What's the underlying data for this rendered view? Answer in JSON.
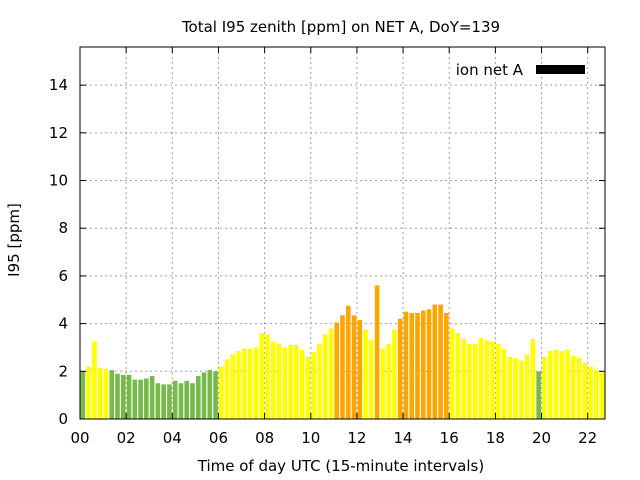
{
  "chart_data": {
    "type": "bar",
    "title": "Total I95 zenith [ppm] on NET A, DoY=139",
    "xlabel": "Time of day UTC (15-minute intervals)",
    "ylabel": "I95 [ppm]",
    "xlim": [
      0,
      22.75
    ],
    "ylim": [
      0,
      15.6
    ],
    "grid": true,
    "legend_position": "top-right",
    "legend": [
      {
        "name": "ion net A",
        "color": "#000000"
      }
    ],
    "x_ticks": [
      "00",
      "02",
      "04",
      "06",
      "08",
      "10",
      "12",
      "14",
      "16",
      "18",
      "20",
      "22"
    ],
    "y_ticks": [
      "0",
      "2",
      "4",
      "6",
      "8",
      "10",
      "12",
      "14"
    ],
    "interval_hours": 0.25,
    "colors": {
      "green": "#77b94b",
      "yellow": "#ffff00",
      "orange": "#ffa500"
    },
    "values": [
      2.0,
      2.2,
      3.25,
      2.15,
      2.1,
      2.05,
      1.9,
      1.85,
      1.85,
      1.65,
      1.65,
      1.7,
      1.8,
      1.5,
      1.45,
      1.45,
      1.6,
      1.5,
      1.6,
      1.5,
      1.8,
      1.95,
      2.05,
      2.0,
      2.2,
      2.5,
      2.7,
      2.85,
      2.95,
      2.95,
      3.0,
      3.6,
      3.55,
      3.25,
      3.15,
      3.0,
      3.1,
      3.1,
      2.9,
      2.6,
      2.8,
      3.15,
      3.55,
      3.8,
      4.05,
      4.35,
      4.75,
      4.35,
      4.15,
      3.75,
      3.3,
      5.6,
      2.95,
      3.15,
      3.75,
      4.2,
      4.5,
      4.45,
      4.45,
      4.55,
      4.6,
      4.8,
      4.8,
      4.45,
      3.8,
      3.6,
      3.35,
      3.15,
      3.15,
      3.4,
      3.3,
      3.25,
      3.15,
      2.95,
      2.6,
      2.55,
      2.45,
      2.7,
      3.35,
      2.0,
      2.6,
      2.85,
      2.9,
      2.85,
      2.9,
      2.65,
      2.55,
      2.35,
      2.2,
      2.05,
      1.95
    ],
    "bar_colors": [
      "green",
      "yellow",
      "yellow",
      "yellow",
      "yellow",
      "green",
      "green",
      "green",
      "green",
      "green",
      "green",
      "green",
      "green",
      "green",
      "green",
      "green",
      "green",
      "green",
      "green",
      "green",
      "green",
      "green",
      "green",
      "green",
      "yellow",
      "yellow",
      "yellow",
      "yellow",
      "yellow",
      "yellow",
      "yellow",
      "yellow",
      "yellow",
      "yellow",
      "yellow",
      "yellow",
      "yellow",
      "yellow",
      "yellow",
      "yellow",
      "yellow",
      "yellow",
      "yellow",
      "yellow",
      "orange",
      "orange",
      "orange",
      "orange",
      "orange",
      "yellow",
      "yellow",
      "orange",
      "yellow",
      "yellow",
      "yellow",
      "orange",
      "orange",
      "orange",
      "orange",
      "orange",
      "orange",
      "orange",
      "orange",
      "orange",
      "yellow",
      "yellow",
      "yellow",
      "yellow",
      "yellow",
      "yellow",
      "yellow",
      "yellow",
      "yellow",
      "yellow",
      "yellow",
      "yellow",
      "yellow",
      "yellow",
      "yellow",
      "green",
      "yellow",
      "yellow",
      "yellow",
      "yellow",
      "yellow",
      "yellow",
      "yellow",
      "yellow",
      "yellow",
      "yellow",
      "yellow"
    ]
  }
}
